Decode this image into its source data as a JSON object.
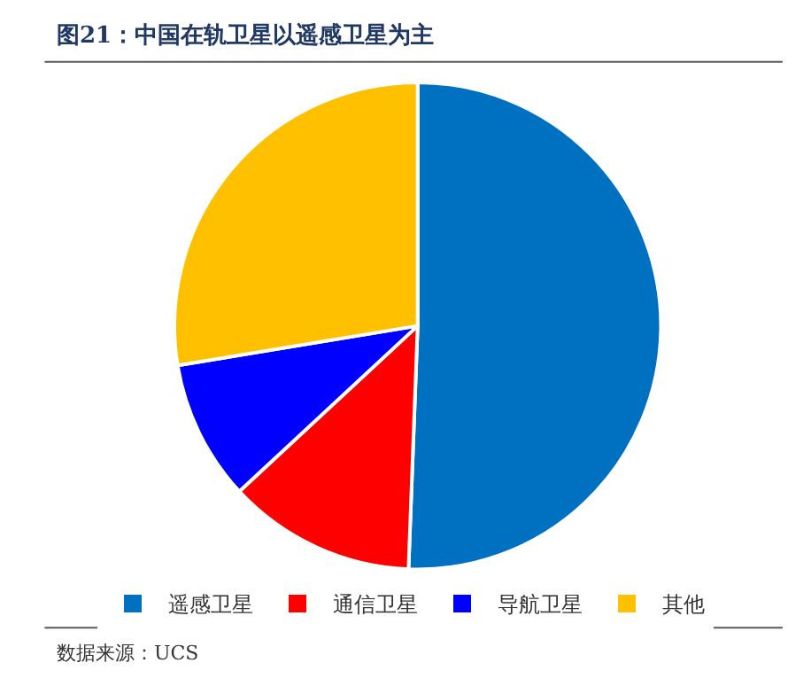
{
  "chart_data": {
    "type": "pie",
    "title": "图21：中国在轨卫星以遥感卫星为主",
    "categories": [
      "遥感卫星",
      "通信卫星",
      "导航卫星",
      "其他"
    ],
    "values": [
      50.6,
      12.5,
      9.3,
      27.6
    ],
    "colors": [
      "#0070c0",
      "#ff0000",
      "#0000ff",
      "#ffc000"
    ],
    "legend": "bottom",
    "annotations": [
      "数据来源：UCS"
    ]
  }
}
